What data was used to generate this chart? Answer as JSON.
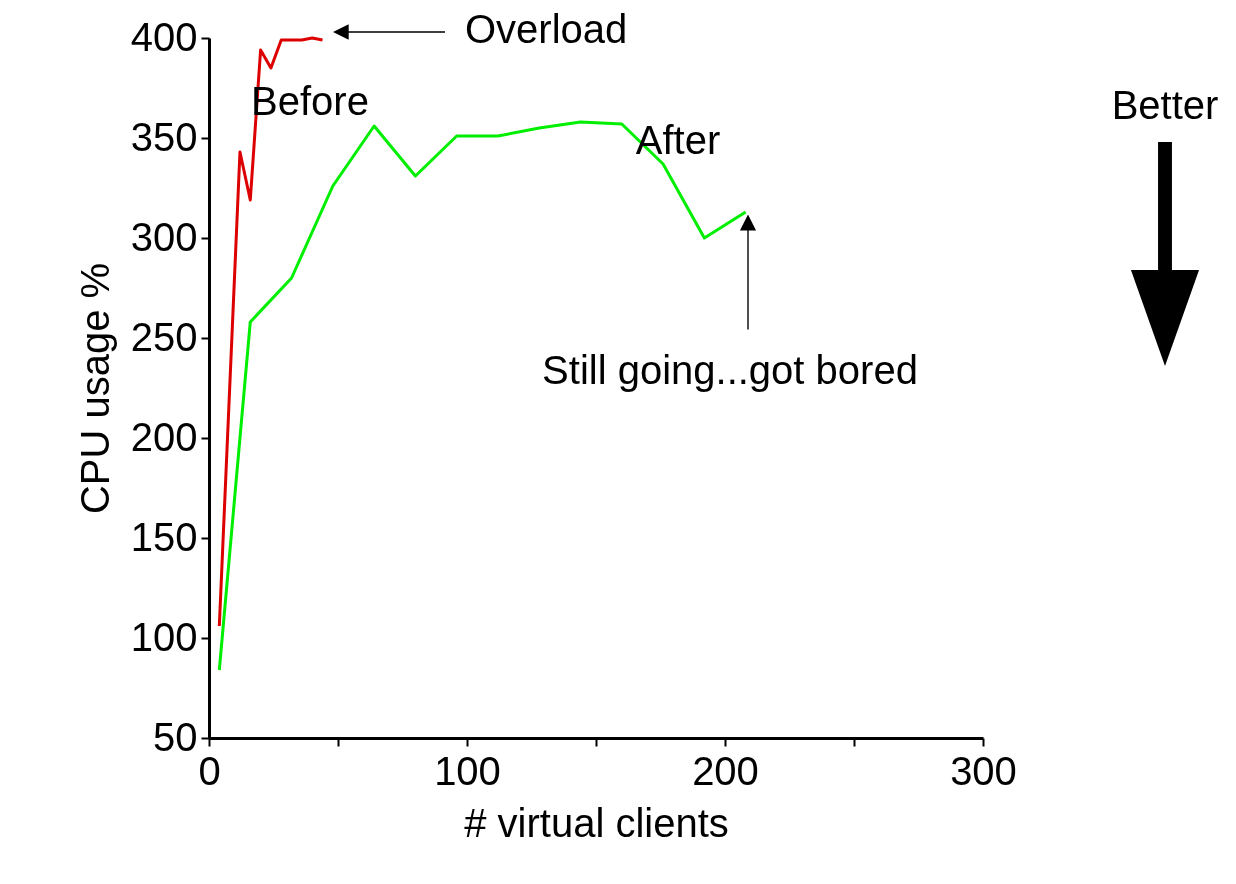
{
  "chart_data": {
    "type": "line",
    "xlabel": "# virtual clients",
    "ylabel": "CPU usage %",
    "series": [
      {
        "name": "Before",
        "color": "#dd0000",
        "x": [
          4,
          12,
          16,
          20,
          24,
          28,
          36,
          40,
          44
        ],
        "values": [
          106,
          343,
          319,
          394,
          385,
          399,
          399,
          400,
          399
        ]
      },
      {
        "name": "After",
        "color": "#00ee00",
        "x": [
          4,
          16,
          32,
          48,
          64,
          80,
          96,
          112,
          128,
          144,
          160,
          176,
          192,
          208
        ],
        "values": [
          84,
          258,
          280,
          326,
          356,
          331,
          351,
          351,
          355,
          358,
          357,
          337,
          300,
          313
        ]
      }
    ],
    "annotations": [
      "Overload",
      "Still going...got bored",
      "Better"
    ],
    "xlim": [
      0,
      300
    ],
    "ylim": [
      50,
      400
    ],
    "xticks": [
      0,
      {
        "value": 50,
        "label": null
      },
      100,
      {
        "value": 150,
        "label": null
      },
      200,
      {
        "value": 250,
        "label": null
      },
      300
    ],
    "yticks": [
      50,
      100,
      150,
      200,
      250,
      300,
      350,
      400
    ],
    "grid": false,
    "legend": false,
    "marker": "none",
    "line_style": "solid"
  }
}
